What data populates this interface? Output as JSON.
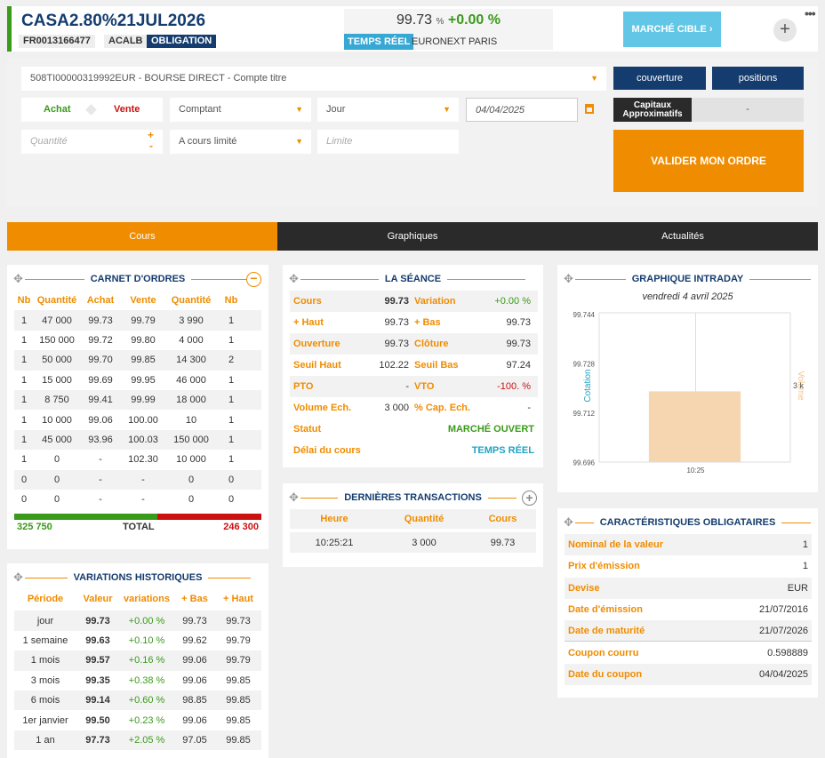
{
  "header": {
    "symbol": "CASA2.80%21JUL2026",
    "isin": "FR0013166477",
    "ticker": "ACALB",
    "type": "OBLIGATION",
    "price": "99.73",
    "price_unit": "%",
    "change": "+0.00 %",
    "realtime_label": "TEMPS RÉEL",
    "market": "EURONEXT PARIS",
    "target_button": "MARCHÉ CIBLE",
    "add_symbol": "+",
    "more_symbol": "•••"
  },
  "order": {
    "account": "508TI00000319992EUR - BOURSE DIRECT - Compte titre",
    "couverture": "couverture",
    "positions": "positions",
    "achat": "Achat",
    "vente": "Vente",
    "payment": "Comptant",
    "validity": "Jour",
    "date": "04/04/2025",
    "capitaux_label": "Capitaux Approximatifs",
    "capitaux_value": "-",
    "quantity_placeholder": "Quantité",
    "order_type": "A cours limité",
    "limit_placeholder": "Limite",
    "validate": "VALIDER MON ORDRE"
  },
  "tabs": [
    "Cours",
    "Graphiques",
    "Actualités"
  ],
  "carnet": {
    "title": "CARNET D'ORDRES",
    "headers": [
      "Nb",
      "Quantité",
      "Achat",
      "Vente",
      "Quantité",
      "Nb"
    ],
    "rows": [
      [
        "1",
        "47 000",
        "99.73",
        "99.79",
        "3 990",
        "1"
      ],
      [
        "1",
        "150 000",
        "99.72",
        "99.80",
        "4 000",
        "1"
      ],
      [
        "1",
        "50 000",
        "99.70",
        "99.85",
        "14 300",
        "2"
      ],
      [
        "1",
        "15 000",
        "99.69",
        "99.95",
        "46 000",
        "1"
      ],
      [
        "1",
        "8 750",
        "99.41",
        "99.99",
        "18 000",
        "1"
      ],
      [
        "1",
        "10 000",
        "99.06",
        "100.00",
        "10",
        "1"
      ],
      [
        "1",
        "45 000",
        "93.96",
        "100.03",
        "150 000",
        "1"
      ],
      [
        "1",
        "0",
        "-",
        "102.30",
        "10 000",
        "1"
      ],
      [
        "0",
        "0",
        "-",
        "-",
        "0",
        "0"
      ],
      [
        "0",
        "0",
        "-",
        "-",
        "0",
        "0"
      ]
    ],
    "total_buy": "325 750",
    "total_label": "TOTAL",
    "total_sell": "246 300",
    "buy_share": 0.58
  },
  "seance": {
    "title": "LA SÉANCE",
    "rows": [
      {
        "l1": "Cours",
        "v1": "99.73",
        "l2": "Variation",
        "v2": "+0.00 %"
      },
      {
        "l1": "+ Haut",
        "v1": "99.73",
        "l2": "+ Bas",
        "v2": "99.73"
      },
      {
        "l1": "Ouverture",
        "v1": "99.73",
        "l2": "Clôture",
        "v2": "99.73"
      },
      {
        "l1": "Seuil Haut",
        "v1": "102.22",
        "l2": "Seuil Bas",
        "v2": "97.24"
      },
      {
        "l1": "PTO",
        "v1": "-",
        "l2": "VTO",
        "v2": "-100. %"
      },
      {
        "l1": "Volume Ech.",
        "v1": "3 000",
        "l2": "% Cap. Ech.",
        "v2": "-"
      }
    ],
    "statut_label": "Statut",
    "statut_value": "MARCHÉ OUVERT",
    "delai_label": "Délai du cours",
    "delai_value": "TEMPS RÉEL"
  },
  "transactions": {
    "title": "DERNIÈRES TRANSACTIONS",
    "headers": [
      "Heure",
      "Quantité",
      "Cours"
    ],
    "rows": [
      [
        "10:25:21",
        "3 000",
        "99.73"
      ]
    ]
  },
  "intraday": {
    "title": "GRAPHIQUE INTRADAY",
    "date": "vendredi 4 avril 2025",
    "left_axis_label": "Cotation",
    "right_axis_label": "Volume",
    "right_tick": "3 k"
  },
  "chart_data": {
    "type": "bar",
    "categories": [
      "10:25"
    ],
    "values": [
      3000
    ],
    "ylabel": "Cotation",
    "y_ticks": [
      "99.744",
      "99.728",
      "99.712",
      "99.696"
    ],
    "ylim": [
      99.696,
      99.744
    ],
    "y2label": "Volume",
    "y2_ticks": [
      "3 k"
    ],
    "grid": true
  },
  "variations": {
    "title": "VARIATIONS HISTORIQUES",
    "headers": [
      "Période",
      "Valeur",
      "variations",
      "+ Bas",
      "+ Haut"
    ],
    "rows": [
      [
        "jour",
        "99.73",
        "+0.00 %",
        "99.73",
        "99.73"
      ],
      [
        "1 semaine",
        "99.63",
        "+0.10 %",
        "99.62",
        "99.79"
      ],
      [
        "1 mois",
        "99.57",
        "+0.16 %",
        "99.06",
        "99.79"
      ],
      [
        "3 mois",
        "99.35",
        "+0.38 %",
        "99.06",
        "99.85"
      ],
      [
        "6 mois",
        "99.14",
        "+0.60 %",
        "98.85",
        "99.85"
      ],
      [
        "1er janvier",
        "99.50",
        "+0.23 %",
        "99.06",
        "99.85"
      ],
      [
        "1 an",
        "97.73",
        "+2.05 %",
        "97.05",
        "99.85"
      ]
    ]
  },
  "caract": {
    "title": "CARACTÉRISTIQUES OBLIGATAIRES",
    "rows": [
      [
        "Nominal de la valeur",
        "1"
      ],
      [
        "Prix d'émission",
        "1"
      ],
      [
        "Devise",
        "EUR"
      ],
      [
        "Date d'émission",
        "21/07/2016"
      ],
      [
        "Date de maturité",
        "21/07/2026"
      ],
      [
        "Coupon courru",
        "0.598889"
      ],
      [
        "Date du coupon",
        "04/04/2025"
      ]
    ]
  },
  "colors": {
    "navy": "#143c6e",
    "orange": "#f08c00",
    "green": "#3a9a1a",
    "red": "#cc1111",
    "cyan": "#62c6e6"
  }
}
